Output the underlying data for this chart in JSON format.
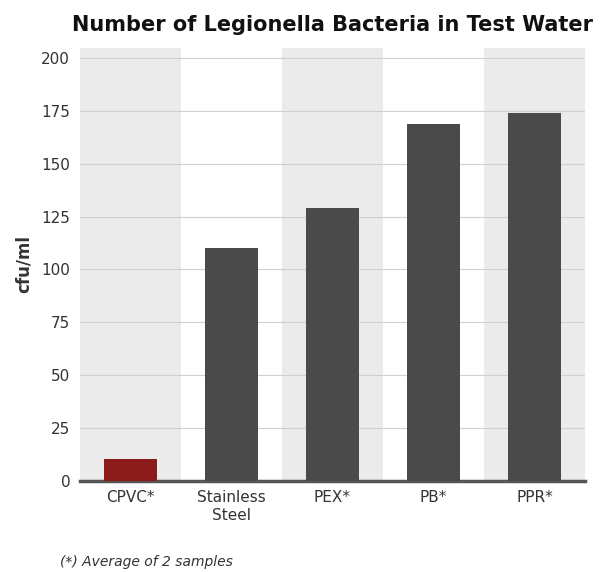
{
  "title": "Number of Legionella Bacteria in Test Water",
  "categories": [
    "CPVC*",
    "Stainless\nSteel",
    "PEX*",
    "PB*",
    "PPR*"
  ],
  "values": [
    10,
    110,
    129,
    169,
    174
  ],
  "bar_colors": [
    "#8b1a1a",
    "#4a4a4a",
    "#4a4a4a",
    "#4a4a4a",
    "#4a4a4a"
  ],
  "ylabel": "cfu/ml",
  "ylim": [
    0,
    205
  ],
  "yticks": [
    0,
    25,
    50,
    75,
    100,
    125,
    150,
    175,
    200
  ],
  "footnote": "(*) Average of 2 samples",
  "bg_color": "#ffffff",
  "band_color": "#ebebeb",
  "band_indices": [
    0,
    2,
    4
  ],
  "title_fontsize": 15,
  "ylabel_fontsize": 12,
  "tick_fontsize": 11,
  "footnote_fontsize": 10,
  "bar_width": 0.52,
  "spine_color": "#555555",
  "grid_color": "#d0d0d0"
}
